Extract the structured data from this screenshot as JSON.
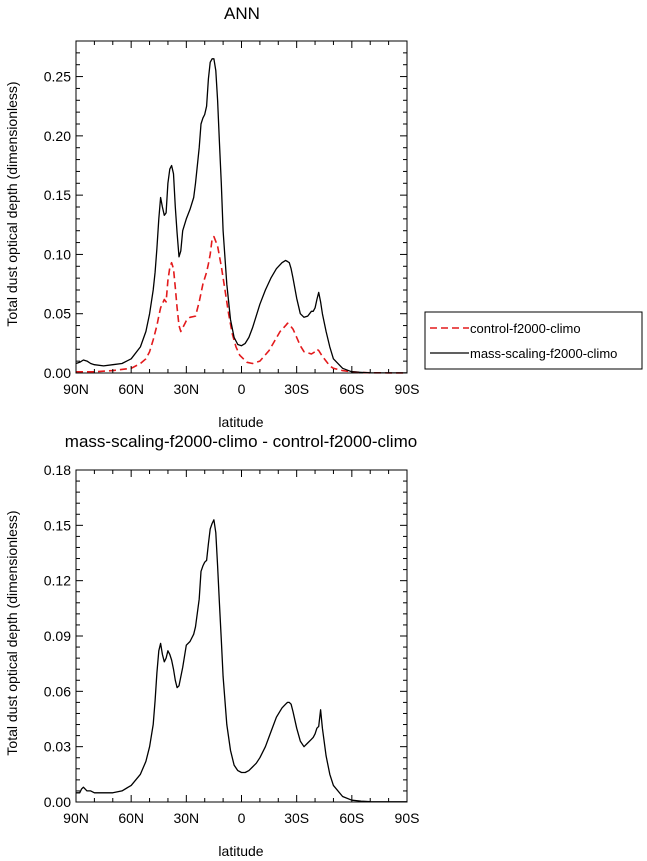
{
  "chart_data": [
    {
      "type": "line",
      "title": "ANN",
      "xlabel": "latitude",
      "ylabel": "Total dust optical depth (dimensionless)",
      "xlim": [
        90,
        -90
      ],
      "ylim": [
        0,
        0.28
      ],
      "x_ticks": [
        90,
        60,
        30,
        0,
        -30,
        -60,
        -90
      ],
      "x_tick_labels": [
        "90N",
        "60N",
        "30N",
        "0",
        "30S",
        "60S",
        "90S"
      ],
      "y_ticks": [
        0,
        0.05,
        0.1,
        0.15,
        0.2,
        0.25
      ],
      "y_tick_labels": [
        "0.00",
        "0.05",
        "0.10",
        "0.15",
        "0.20",
        "0.25"
      ],
      "legend_position": "right",
      "series": [
        {
          "name": "control-f2000-climo",
          "color": "#e31a1c",
          "dash": "dashed",
          "x": [
            90,
            80,
            70,
            60,
            55,
            52,
            50,
            48,
            46,
            45,
            44,
            42,
            41,
            40,
            39,
            38,
            37,
            36,
            35,
            34,
            33,
            30,
            28,
            25,
            23,
            21,
            19,
            18,
            17,
            16,
            15,
            13,
            11,
            9,
            7,
            5,
            3,
            1,
            -3,
            -6,
            -10,
            -15,
            -18,
            -21,
            -24,
            -25,
            -26,
            -28,
            -30,
            -32,
            -34,
            -36,
            -38,
            -40,
            -41,
            -42,
            -44,
            -46,
            -48,
            -50,
            -55,
            -60,
            -65,
            -70,
            -80,
            -90
          ],
          "values": [
            0.001,
            0.001,
            0.002,
            0.004,
            0.008,
            0.012,
            0.018,
            0.028,
            0.04,
            0.048,
            0.055,
            0.062,
            0.06,
            0.078,
            0.089,
            0.093,
            0.088,
            0.072,
            0.055,
            0.04,
            0.035,
            0.044,
            0.047,
            0.048,
            0.06,
            0.075,
            0.085,
            0.092,
            0.1,
            0.113,
            0.115,
            0.107,
            0.09,
            0.07,
            0.05,
            0.033,
            0.022,
            0.015,
            0.009,
            0.008,
            0.01,
            0.019,
            0.027,
            0.035,
            0.04,
            0.042,
            0.041,
            0.037,
            0.03,
            0.023,
            0.018,
            0.017,
            0.016,
            0.018,
            0.02,
            0.019,
            0.014,
            0.01,
            0.006,
            0.004,
            0.002,
            0.001,
            0.0005,
            0.0002,
            0.0001,
            0.0001
          ]
        },
        {
          "name": "mass-scaling-f2000-climo",
          "color": "#000000",
          "dash": "solid",
          "x": [
            90,
            88,
            86,
            84,
            82,
            80,
            75,
            70,
            65,
            60,
            55,
            52,
            50,
            48,
            47,
            46,
            45,
            44,
            43,
            42,
            41,
            40,
            39,
            38,
            37,
            36,
            35,
            34,
            33,
            32,
            30,
            28,
            26,
            25,
            23,
            22,
            21,
            20,
            19,
            18,
            17,
            16,
            15,
            14,
            13,
            12,
            11,
            10,
            8,
            6,
            4,
            2,
            0,
            -2,
            -4,
            -6,
            -8,
            -10,
            -13,
            -16,
            -19,
            -22,
            -24,
            -25,
            -26,
            -27,
            -28,
            -30,
            -32,
            -34,
            -36,
            -38,
            -39,
            -40,
            -41,
            -42,
            -43,
            -44,
            -46,
            -48,
            -50,
            -55,
            -60,
            -65,
            -70,
            -80,
            -90
          ],
          "values": [
            0.008,
            0.009,
            0.011,
            0.01,
            0.008,
            0.007,
            0.006,
            0.007,
            0.008,
            0.012,
            0.022,
            0.035,
            0.05,
            0.07,
            0.085,
            0.105,
            0.13,
            0.148,
            0.14,
            0.133,
            0.135,
            0.16,
            0.172,
            0.175,
            0.168,
            0.14,
            0.118,
            0.098,
            0.103,
            0.12,
            0.13,
            0.138,
            0.148,
            0.16,
            0.19,
            0.21,
            0.215,
            0.218,
            0.225,
            0.248,
            0.262,
            0.265,
            0.265,
            0.255,
            0.23,
            0.195,
            0.16,
            0.12,
            0.075,
            0.045,
            0.03,
            0.024,
            0.023,
            0.025,
            0.03,
            0.038,
            0.048,
            0.058,
            0.07,
            0.08,
            0.088,
            0.093,
            0.095,
            0.094,
            0.093,
            0.088,
            0.08,
            0.063,
            0.05,
            0.047,
            0.048,
            0.052,
            0.052,
            0.055,
            0.062,
            0.068,
            0.06,
            0.05,
            0.035,
            0.022,
            0.012,
            0.004,
            0.001,
            0.0005,
            0.0002,
            0.0001,
            0.0001
          ]
        }
      ]
    },
    {
      "type": "line",
      "title": "mass-scaling-f2000-climo - control-f2000-climo",
      "xlabel": "latitude",
      "ylabel": "Total dust optical depth (dimensionless)",
      "xlim": [
        90,
        -90
      ],
      "ylim": [
        0,
        0.18
      ],
      "x_ticks": [
        90,
        60,
        30,
        0,
        -30,
        -60,
        -90
      ],
      "x_tick_labels": [
        "90N",
        "60N",
        "30N",
        "0",
        "30S",
        "60S",
        "90S"
      ],
      "y_ticks": [
        0,
        0.03,
        0.06,
        0.09,
        0.12,
        0.15,
        0.18
      ],
      "y_tick_labels": [
        "0.00",
        "0.03",
        "0.06",
        "0.09",
        "0.12",
        "0.15",
        "0.18"
      ],
      "series": [
        {
          "name": "mass-scaling-f2000-climo - control-f2000-climo",
          "color": "#000000",
          "dash": "solid",
          "x": [
            90,
            88,
            87,
            86,
            85,
            84,
            82,
            80,
            75,
            70,
            65,
            60,
            55,
            52,
            50,
            48,
            47,
            46,
            45,
            44,
            43,
            42,
            41,
            40,
            39,
            38,
            37,
            36,
            35,
            34,
            32,
            30,
            28,
            26,
            25,
            23,
            22,
            21,
            20,
            19,
            18,
            17,
            16,
            15,
            14,
            13,
            12,
            11,
            10,
            8,
            6,
            4,
            2,
            0,
            -2,
            -4,
            -6,
            -8,
            -10,
            -13,
            -16,
            -19,
            -22,
            -24,
            -25,
            -26,
            -27,
            -28,
            -30,
            -32,
            -34,
            -36,
            -38,
            -39,
            -40,
            -41,
            -42,
            -43,
            -44,
            -46,
            -48,
            -50,
            -55,
            -60,
            -65,
            -70,
            -80,
            -90
          ],
          "values": [
            0.005,
            0.005,
            0.007,
            0.008,
            0.007,
            0.006,
            0.006,
            0.005,
            0.005,
            0.005,
            0.006,
            0.009,
            0.015,
            0.022,
            0.03,
            0.042,
            0.055,
            0.07,
            0.082,
            0.086,
            0.08,
            0.076,
            0.078,
            0.082,
            0.08,
            0.077,
            0.072,
            0.066,
            0.062,
            0.063,
            0.073,
            0.085,
            0.087,
            0.091,
            0.095,
            0.11,
            0.125,
            0.128,
            0.13,
            0.131,
            0.14,
            0.148,
            0.151,
            0.153,
            0.146,
            0.128,
            0.108,
            0.088,
            0.068,
            0.042,
            0.028,
            0.02,
            0.017,
            0.016,
            0.016,
            0.017,
            0.019,
            0.021,
            0.024,
            0.03,
            0.038,
            0.046,
            0.051,
            0.053,
            0.054,
            0.054,
            0.053,
            0.049,
            0.04,
            0.033,
            0.03,
            0.032,
            0.034,
            0.035,
            0.037,
            0.04,
            0.041,
            0.05,
            0.04,
            0.025,
            0.015,
            0.009,
            0.003,
            0.001,
            0.0005,
            0.0002,
            0.0001,
            0.0001
          ]
        }
      ]
    }
  ]
}
